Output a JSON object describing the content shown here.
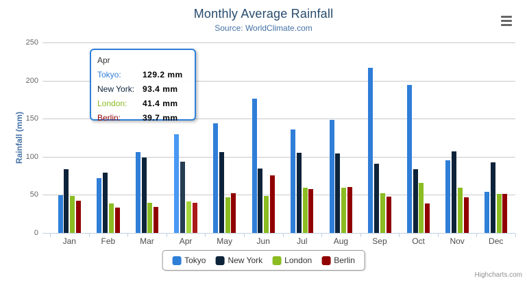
{
  "chart_data": {
    "type": "bar",
    "orientation": "vertical-columns",
    "title": "Monthly Average Rainfall",
    "subtitle": "Source: WorldClimate.com",
    "xlabel": "",
    "ylabel": "Rainfall (mm)",
    "ylim": [
      0,
      250
    ],
    "yticks": [
      0,
      50,
      100,
      150,
      200,
      250
    ],
    "grid": true,
    "legend_position": "bottom",
    "categories": [
      "Jan",
      "Feb",
      "Mar",
      "Apr",
      "May",
      "Jun",
      "Jul",
      "Aug",
      "Sep",
      "Oct",
      "Nov",
      "Dec"
    ],
    "series": [
      {
        "name": "Tokyo",
        "color": "#2f7ed8",
        "values": [
          49.9,
          71.5,
          106.4,
          129.2,
          144.0,
          176.0,
          135.6,
          148.5,
          216.4,
          194.1,
          95.6,
          54.4
        ]
      },
      {
        "name": "New York",
        "color": "#0d233a",
        "values": [
          83.6,
          78.8,
          98.5,
          93.4,
          106.0,
          84.5,
          105.0,
          104.3,
          91.2,
          83.5,
          106.6,
          92.3
        ]
      },
      {
        "name": "London",
        "color": "#8bbc21",
        "values": [
          48.9,
          38.8,
          39.3,
          41.4,
          47.0,
          48.3,
          59.0,
          59.6,
          52.4,
          65.2,
          59.3,
          51.2
        ]
      },
      {
        "name": "Berlin",
        "color": "#910000",
        "values": [
          42.4,
          33.2,
          34.5,
          39.7,
          52.6,
          75.5,
          57.4,
          60.4,
          47.6,
          39.1,
          46.8,
          51.1
        ]
      }
    ]
  },
  "tooltip": {
    "visible": true,
    "category": "Apr",
    "category_index": 3,
    "rows": [
      {
        "label": "Tokyo:",
        "value": "129.2 mm",
        "color": "#2f7ed8"
      },
      {
        "label": "New York:",
        "value": "93.4 mm",
        "color": "#0d233a"
      },
      {
        "label": "London:",
        "value": "41.4 mm",
        "color": "#8bbc21"
      },
      {
        "label": "Berlin:",
        "value": "39.7 mm",
        "color": "#910000"
      }
    ]
  },
  "credit": "Highcharts.com"
}
